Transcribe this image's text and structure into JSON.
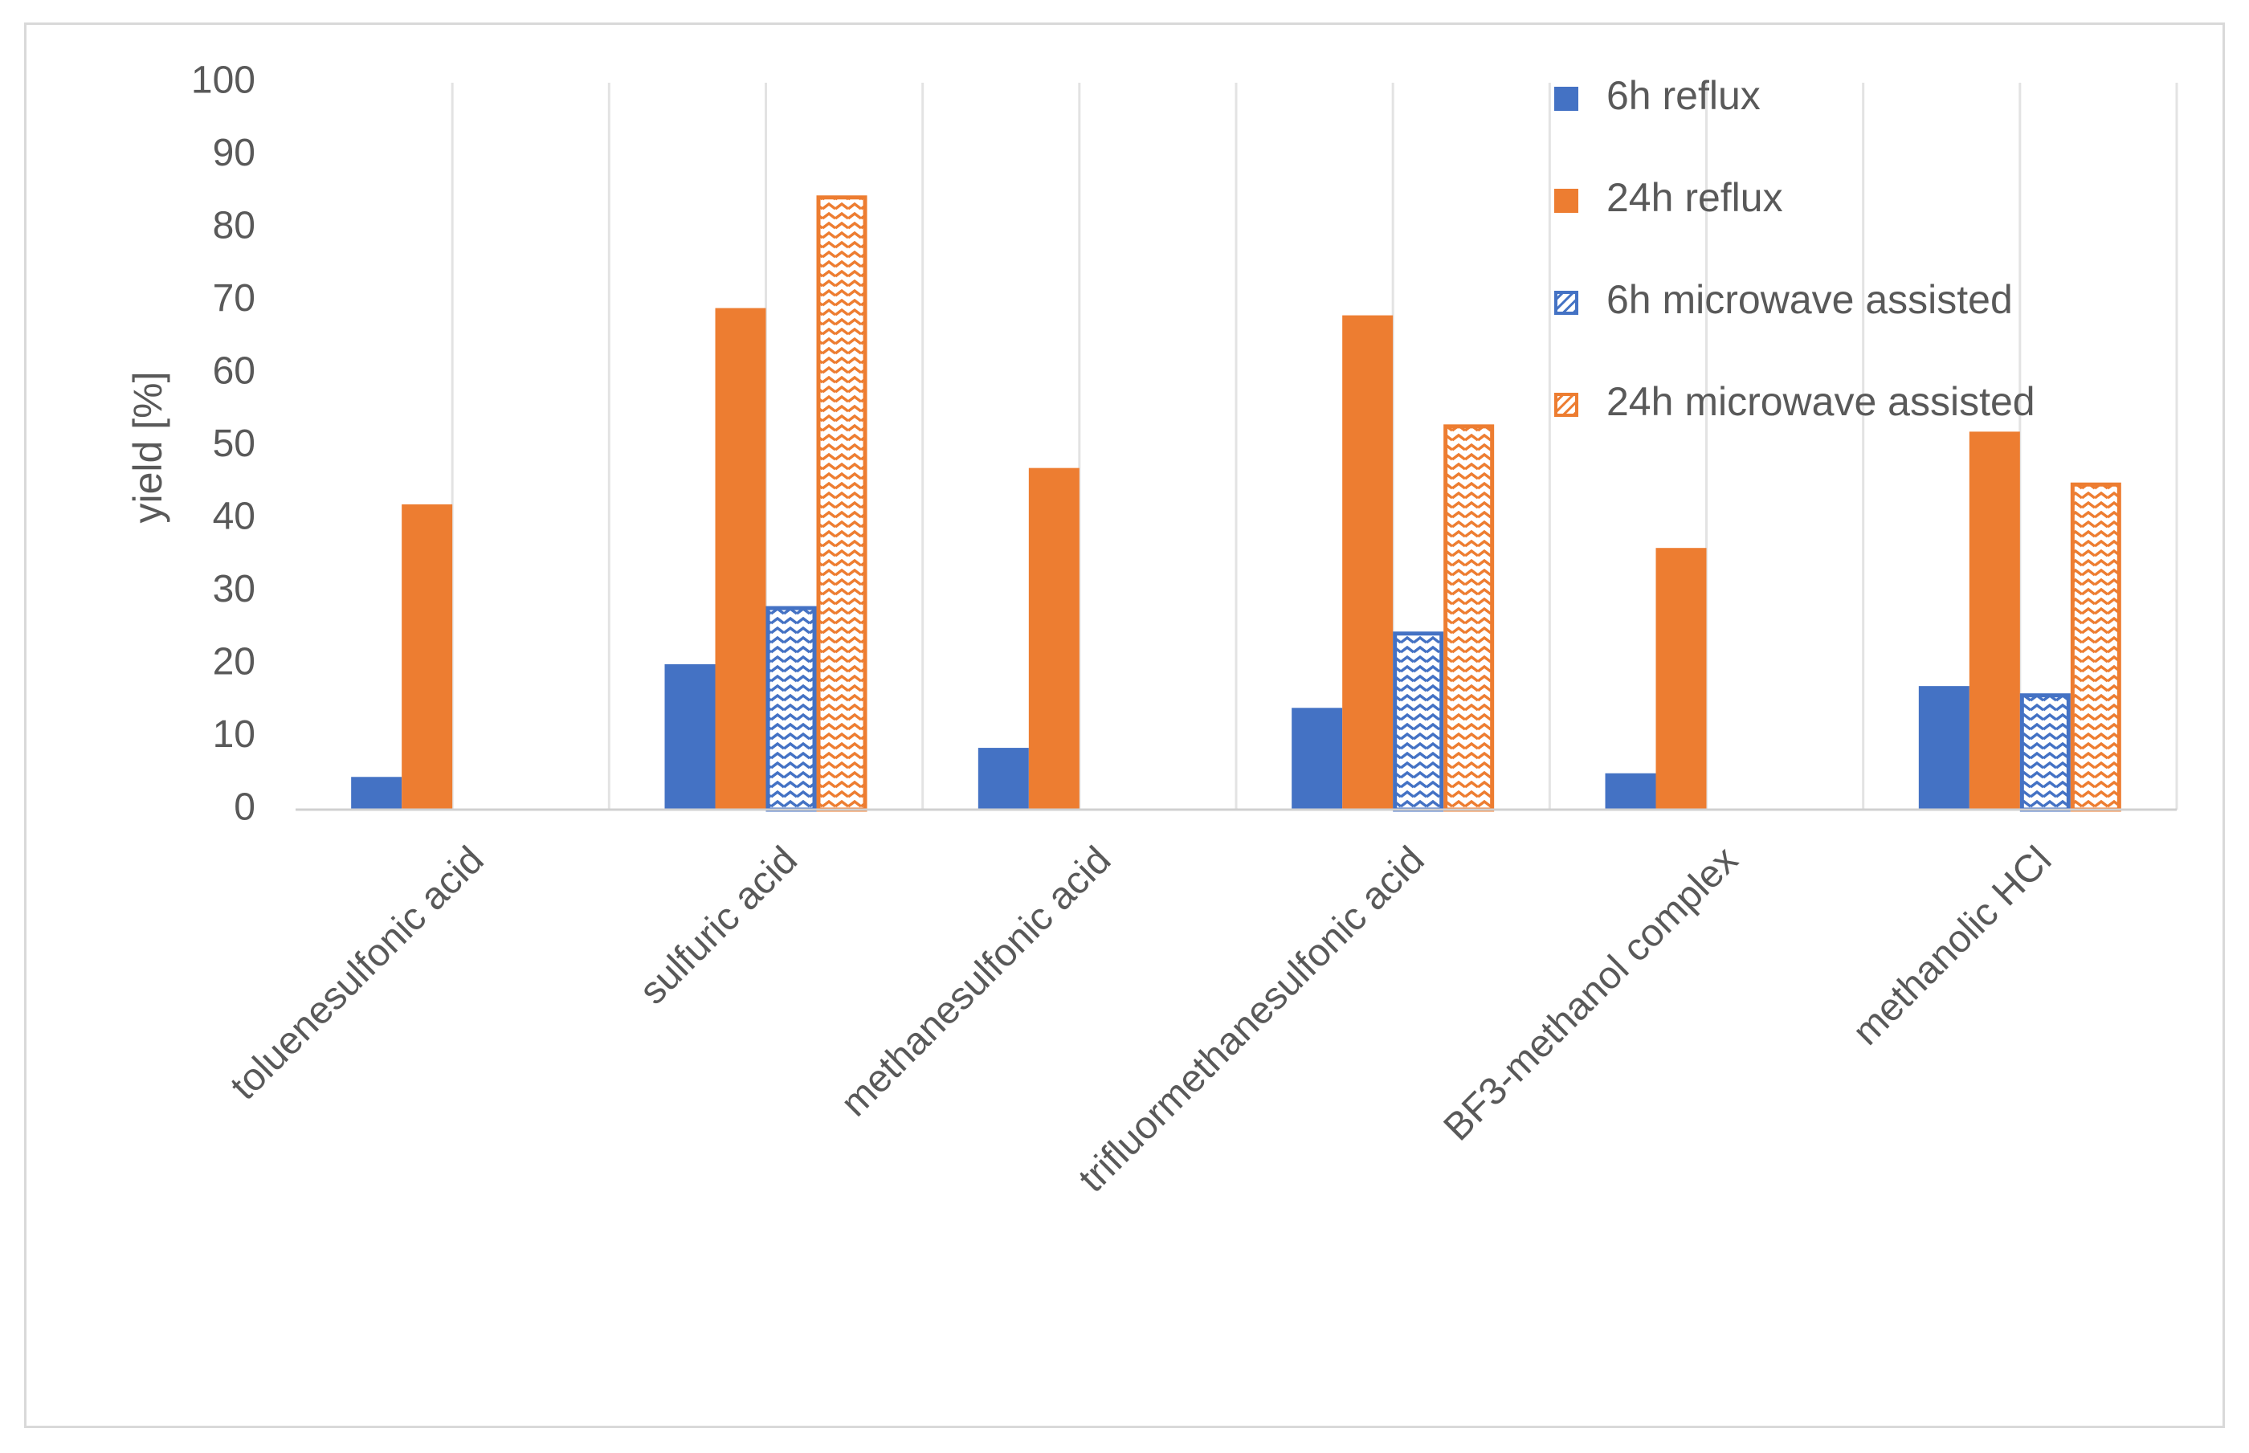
{
  "chart_data": {
    "type": "bar",
    "title": "",
    "xlabel": "",
    "ylabel": "yield [%]",
    "ylim": [
      0,
      100
    ],
    "yticks": [
      0,
      10,
      20,
      30,
      40,
      50,
      60,
      70,
      80,
      90,
      100
    ],
    "grid": "vertical",
    "legend_position": "top-right",
    "categories": [
      "toluenesulfonic acid",
      "sulfuric acid",
      "methanesulfonic acid",
      "trifluormethanesulfonic acid",
      "BF3-methanol complex",
      "methanolic HCl"
    ],
    "series": [
      {
        "name": "6h reflux",
        "color": "#4472c4",
        "pattern": "solid",
        "values": [
          4.5,
          20,
          8.5,
          14,
          5,
          17
        ]
      },
      {
        "name": "24h reflux",
        "color": "#ed7d31",
        "pattern": "solid",
        "values": [
          42,
          69,
          47,
          68,
          36,
          52
        ]
      },
      {
        "name": "6h microwave assisted",
        "color": "#4472c4",
        "pattern": "zigzag",
        "values": [
          null,
          28,
          null,
          24.5,
          null,
          16
        ]
      },
      {
        "name": "24h microwave assisted",
        "color": "#ed7d31",
        "pattern": "zigzag",
        "values": [
          null,
          84.5,
          null,
          53,
          null,
          45
        ]
      }
    ]
  }
}
